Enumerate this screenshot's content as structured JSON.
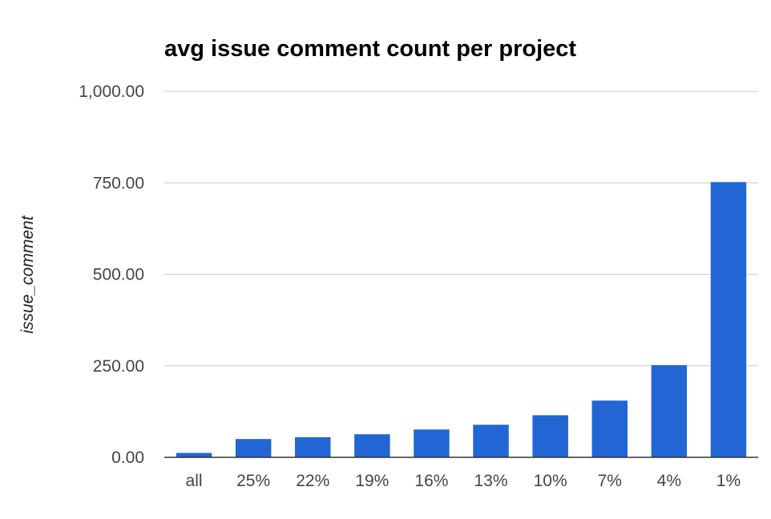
{
  "chart_data": {
    "type": "bar",
    "title": "avg issue comment count per project",
    "xlabel": "",
    "ylabel": "issue_comment",
    "categories": [
      "all",
      "25%",
      "22%",
      "19%",
      "16%",
      "13%",
      "10%",
      "7%",
      "4%",
      "1%"
    ],
    "values": [
      12,
      50,
      55,
      63,
      76,
      89,
      115,
      155,
      252,
      752
    ],
    "ylim": [
      0,
      1000
    ],
    "yticks": [
      0,
      250,
      500,
      750,
      1000
    ],
    "ytick_labels": [
      "0.00",
      "250.00",
      "500.00",
      "750.00",
      "1,000.00"
    ],
    "grid": true,
    "legend": "none",
    "bar_color": "#2166d4",
    "grid_color": "#cccccc",
    "baseline_color": "#333333"
  }
}
